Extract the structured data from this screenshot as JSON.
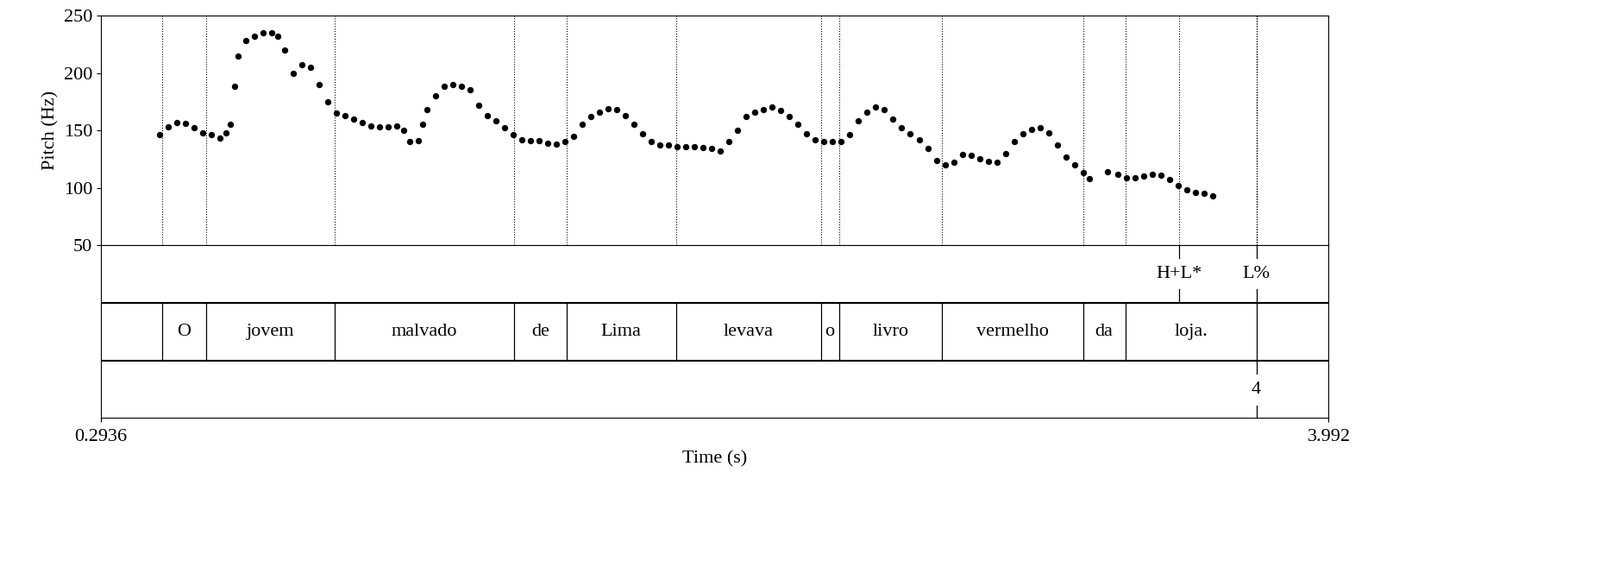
{
  "chart_data": {
    "type": "scatter",
    "xlabel": "Time (s)",
    "ylabel": "Pitch (Hz)",
    "xlim": [
      0.2936,
      3.992
    ],
    "xticks": [
      0.2936,
      3.992
    ],
    "ylim": [
      50,
      250
    ],
    "yticks": [
      50,
      100,
      150,
      200,
      250
    ],
    "color": "#000000",
    "marker": "o",
    "x": [
      0.47,
      0.496,
      0.522,
      0.548,
      0.574,
      0.6,
      0.626,
      0.652,
      0.67,
      0.683,
      0.696,
      0.707,
      0.73,
      0.756,
      0.782,
      0.808,
      0.826,
      0.847,
      0.873,
      0.899,
      0.925,
      0.951,
      0.977,
      1.003,
      1.029,
      1.055,
      1.081,
      1.107,
      1.133,
      1.159,
      1.185,
      1.206,
      1.224,
      1.25,
      1.263,
      1.276,
      1.302,
      1.328,
      1.354,
      1.38,
      1.406,
      1.432,
      1.458,
      1.484,
      1.51,
      1.536,
      1.562,
      1.588,
      1.614,
      1.64,
      1.666,
      1.692,
      1.718,
      1.744,
      1.77,
      1.796,
      1.822,
      1.848,
      1.874,
      1.9,
      1.926,
      1.952,
      1.978,
      2.004,
      2.03,
      2.056,
      2.082,
      2.108,
      2.134,
      2.16,
      2.186,
      2.212,
      2.238,
      2.264,
      2.29,
      2.316,
      2.342,
      2.368,
      2.394,
      2.42,
      2.446,
      2.472,
      2.498,
      2.524,
      2.55,
      2.576,
      2.602,
      2.628,
      2.654,
      2.68,
      2.706,
      2.732,
      2.758,
      2.784,
      2.81,
      2.836,
      2.862,
      2.888,
      2.914,
      2.94,
      2.966,
      2.992,
      3.018,
      3.044,
      3.07,
      3.096,
      3.122,
      3.148,
      3.174,
      3.2,
      3.226,
      3.252,
      3.27,
      3.325,
      3.356,
      3.382,
      3.408,
      3.434,
      3.46,
      3.486,
      3.512,
      3.538,
      3.564,
      3.59,
      3.616,
      3.642
    ],
    "values": [
      146,
      153,
      157,
      156,
      152,
      148,
      146,
      143,
      148,
      155,
      188,
      215,
      228,
      232,
      235,
      235,
      232,
      220,
      200,
      207,
      205,
      190,
      175,
      165,
      163,
      160,
      157,
      154,
      153,
      153,
      154,
      150,
      140,
      141,
      155,
      168,
      180,
      188,
      190,
      188,
      185,
      172,
      163,
      158,
      152,
      146,
      142,
      141,
      141,
      139,
      138,
      140,
      145,
      155,
      162,
      166,
      169,
      168,
      163,
      155,
      147,
      140,
      137,
      137,
      136,
      136,
      136,
      135,
      134,
      132,
      140,
      150,
      162,
      166,
      168,
      170,
      167,
      162,
      155,
      147,
      142,
      140,
      140,
      140,
      146,
      158,
      166,
      170,
      168,
      160,
      152,
      147,
      142,
      134,
      124,
      120,
      122,
      129,
      128,
      125,
      123,
      122,
      130,
      140,
      147,
      151,
      152,
      148,
      137,
      127,
      120,
      113,
      108,
      114,
      112,
      109,
      109,
      110,
      112,
      111,
      107,
      102,
      98,
      96,
      95,
      93
    ],
    "tiers": [
      {
        "type": "point",
        "points": [
          {
            "time": 3.542,
            "label": "H+L*"
          },
          {
            "time": 3.774,
            "label": "L%"
          }
        ]
      },
      {
        "type": "interval",
        "boundaries": [
          0.478,
          0.61,
          0.997,
          1.538,
          1.696,
          2.026,
          2.462,
          2.517,
          2.828,
          3.252,
          3.379,
          3.774
        ],
        "labels": [
          "O",
          "jovem",
          "malvado",
          "de",
          "Lima",
          "levava",
          "o",
          "livro",
          "vermelho",
          "da",
          "loja."
        ]
      },
      {
        "type": "point",
        "points": [
          {
            "time": 3.774,
            "label": "4"
          }
        ]
      }
    ]
  }
}
